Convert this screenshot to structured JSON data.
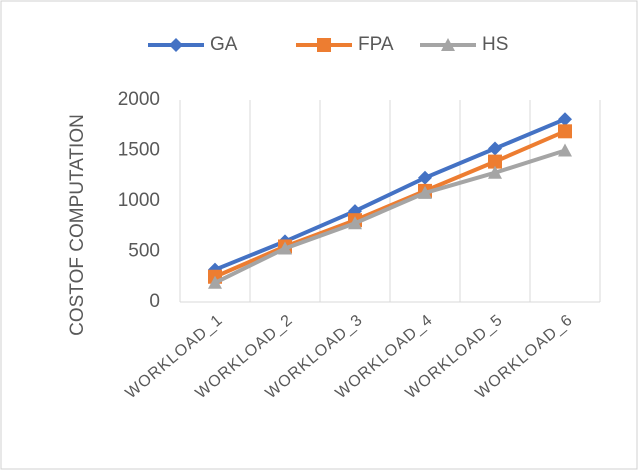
{
  "chart_data": {
    "type": "line",
    "categories": [
      "WORKLOAD_1",
      "WORKLOAD_2",
      "WORKLOAD_3",
      "WORKLOAD_4",
      "WORKLOAD_5",
      "WORKLOAD_6"
    ],
    "series": [
      {
        "name": "GA",
        "color": "#4472c4",
        "marker": "diamond",
        "values": [
          320,
          600,
          900,
          1230,
          1520,
          1810
        ]
      },
      {
        "name": "FPA",
        "color": "#ed7d31",
        "marker": "square",
        "values": [
          250,
          550,
          810,
          1100,
          1390,
          1690
        ]
      },
      {
        "name": "HS",
        "color": "#a5a5a5",
        "marker": "triangle",
        "values": [
          190,
          530,
          780,
          1080,
          1280,
          1500
        ]
      }
    ],
    "y_label": "COSTOF COMPUTATION",
    "ylim": [
      0,
      2000
    ],
    "yticks": [
      0,
      500,
      1000,
      1500,
      2000
    ],
    "legend": "top",
    "grid": "vertical"
  }
}
